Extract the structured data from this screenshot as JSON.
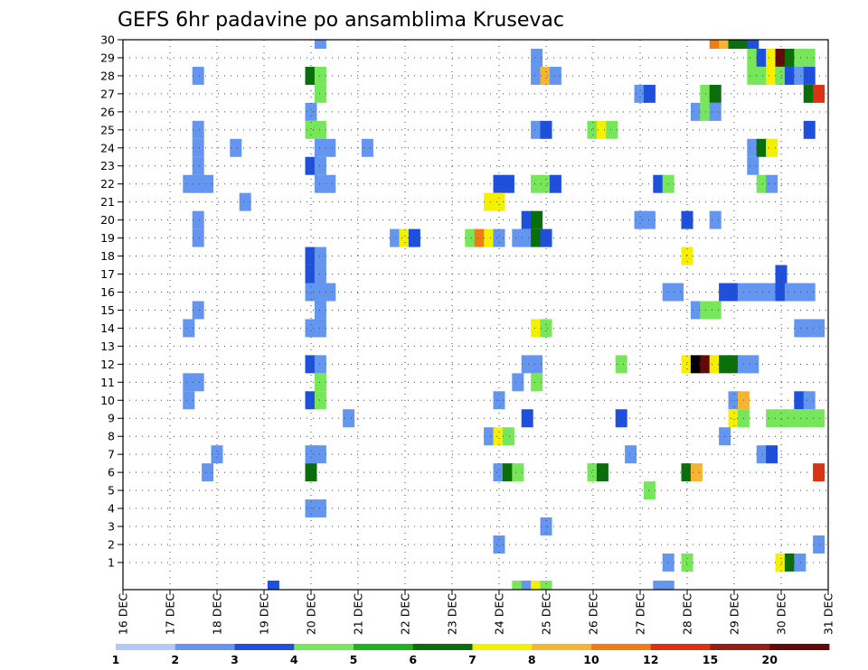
{
  "chart_data": {
    "type": "heatmap",
    "title": "GEFS 6hr padavine po ansamblima Krusevac",
    "xlabel": "",
    "ylabel": "",
    "x_tick_labels": [
      "16 DEC",
      "17 DEC",
      "18 DEC",
      "19 DEC",
      "20 DEC",
      "21 DEC",
      "22 DEC",
      "23 DEC",
      "24 DEC",
      "25 DEC",
      "26 DEC",
      "27 DEC",
      "28 DEC",
      "29 DEC",
      "30 DEC",
      "31 DEC"
    ],
    "y_tick_labels": [
      "1",
      "2",
      "3",
      "4",
      "5",
      "6",
      "7",
      "8",
      "9",
      "10",
      "11",
      "12",
      "13",
      "14",
      "15",
      "16",
      "17",
      "18",
      "19",
      "20",
      "21",
      "22",
      "23",
      "24",
      "25",
      "26",
      "27",
      "28",
      "29",
      "30"
    ],
    "xlim_days": [
      0,
      15
    ],
    "ylim_members": [
      0,
      30
    ],
    "time_step_hours": 6,
    "grid": true,
    "colorbar": {
      "position": "bottom",
      "labels": [
        "1",
        "2",
        "3",
        "4",
        "5",
        "6",
        "7",
        "8",
        "10",
        "12",
        "15",
        "20"
      ],
      "colors": [
        "#b4c8f5",
        "#6496f0",
        "#1e50dc",
        "#78e65a",
        "#1eb41e",
        "#0a6e0a",
        "#f5f000",
        "#f5b432",
        "#f07d14",
        "#dc3214",
        "#961e14",
        "#640a0a"
      ]
    },
    "cells": [
      [
        4.2,
        30,
        1
      ],
      [
        12.6,
        30,
        8
      ],
      [
        12.8,
        30,
        7
      ],
      [
        13.0,
        30,
        5
      ],
      [
        13.2,
        30,
        5
      ],
      [
        13.4,
        30,
        2
      ],
      [
        8.8,
        29,
        1
      ],
      [
        13.4,
        29,
        3
      ],
      [
        13.6,
        29,
        2
      ],
      [
        13.8,
        29,
        6
      ],
      [
        14.0,
        29,
        11
      ],
      [
        14.2,
        29,
        5
      ],
      [
        14.4,
        29,
        3
      ],
      [
        14.6,
        29,
        3
      ],
      [
        1.6,
        28,
        1
      ],
      [
        4.0,
        28,
        5
      ],
      [
        4.2,
        28,
        3
      ],
      [
        8.8,
        28,
        1
      ],
      [
        9.0,
        28,
        7
      ],
      [
        9.2,
        28,
        1
      ],
      [
        13.4,
        28,
        3
      ],
      [
        13.6,
        28,
        3
      ],
      [
        13.8,
        28,
        6
      ],
      [
        14.0,
        28,
        3
      ],
      [
        14.2,
        28,
        2
      ],
      [
        14.4,
        28,
        1
      ],
      [
        14.6,
        28,
        2
      ],
      [
        4.2,
        27,
        3
      ],
      [
        11.0,
        27,
        1
      ],
      [
        11.2,
        27,
        2
      ],
      [
        12.4,
        27,
        3
      ],
      [
        12.6,
        27,
        5
      ],
      [
        14.6,
        27,
        5
      ],
      [
        14.8,
        27,
        9
      ],
      [
        4.0,
        26,
        1
      ],
      [
        12.2,
        26,
        1
      ],
      [
        12.4,
        26,
        3
      ],
      [
        12.6,
        26,
        1
      ],
      [
        1.6,
        25,
        1
      ],
      [
        4.0,
        25,
        3
      ],
      [
        4.2,
        25,
        3
      ],
      [
        8.8,
        25,
        1
      ],
      [
        9.0,
        25,
        2
      ],
      [
        10.0,
        25,
        3
      ],
      [
        10.2,
        25,
        6
      ],
      [
        10.4,
        25,
        3
      ],
      [
        14.6,
        25,
        2
      ],
      [
        1.6,
        24,
        1
      ],
      [
        2.4,
        24,
        1
      ],
      [
        4.2,
        24,
        1
      ],
      [
        4.4,
        24,
        1
      ],
      [
        5.2,
        24,
        1
      ],
      [
        13.4,
        24,
        1
      ],
      [
        13.6,
        24,
        5
      ],
      [
        13.8,
        24,
        6
      ],
      [
        1.6,
        23,
        1
      ],
      [
        4.0,
        23,
        2
      ],
      [
        4.2,
        23,
        1
      ],
      [
        13.4,
        23,
        1
      ],
      [
        1.4,
        22,
        1
      ],
      [
        1.6,
        22,
        1
      ],
      [
        1.8,
        22,
        1
      ],
      [
        4.2,
        22,
        1
      ],
      [
        4.4,
        22,
        1
      ],
      [
        8.0,
        22,
        2
      ],
      [
        8.2,
        22,
        2
      ],
      [
        8.8,
        22,
        3
      ],
      [
        9.0,
        22,
        3
      ],
      [
        9.2,
        22,
        2
      ],
      [
        11.4,
        22,
        2
      ],
      [
        11.6,
        22,
        3
      ],
      [
        13.6,
        22,
        3
      ],
      [
        13.8,
        22,
        1
      ],
      [
        2.6,
        21,
        1
      ],
      [
        7.8,
        21,
        6
      ],
      [
        8.0,
        21,
        6
      ],
      [
        1.6,
        20,
        1
      ],
      [
        8.6,
        20,
        2
      ],
      [
        8.8,
        20,
        5
      ],
      [
        11.0,
        20,
        1
      ],
      [
        11.2,
        20,
        1
      ],
      [
        12.0,
        20,
        2
      ],
      [
        12.6,
        20,
        1
      ],
      [
        1.6,
        19,
        1
      ],
      [
        5.8,
        19,
        1
      ],
      [
        6.0,
        19,
        6
      ],
      [
        6.2,
        19,
        2
      ],
      [
        7.4,
        19,
        3
      ],
      [
        7.6,
        19,
        8
      ],
      [
        7.8,
        19,
        6
      ],
      [
        8.0,
        19,
        1
      ],
      [
        8.4,
        19,
        1
      ],
      [
        8.6,
        19,
        1
      ],
      [
        8.8,
        19,
        5
      ],
      [
        9.0,
        19,
        2
      ],
      [
        4.0,
        18,
        2
      ],
      [
        4.2,
        18,
        1
      ],
      [
        12.0,
        18,
        6
      ],
      [
        4.0,
        17,
        2
      ],
      [
        4.2,
        17,
        1
      ],
      [
        14.0,
        17,
        2
      ],
      [
        4.0,
        16,
        1
      ],
      [
        4.2,
        16,
        1
      ],
      [
        4.4,
        16,
        1
      ],
      [
        11.6,
        16,
        1
      ],
      [
        11.8,
        16,
        1
      ],
      [
        12.8,
        16,
        2
      ],
      [
        13.0,
        16,
        2
      ],
      [
        13.2,
        16,
        1
      ],
      [
        13.4,
        16,
        1
      ],
      [
        13.6,
        16,
        1
      ],
      [
        13.8,
        16,
        1
      ],
      [
        14.0,
        16,
        2
      ],
      [
        14.2,
        16,
        1
      ],
      [
        14.4,
        16,
        1
      ],
      [
        14.6,
        16,
        1
      ],
      [
        1.6,
        15,
        1
      ],
      [
        4.2,
        15,
        1
      ],
      [
        12.2,
        15,
        1
      ],
      [
        12.4,
        15,
        3
      ],
      [
        12.6,
        15,
        3
      ],
      [
        1.4,
        14,
        1
      ],
      [
        4.0,
        14,
        1
      ],
      [
        4.2,
        14,
        1
      ],
      [
        8.8,
        14,
        6
      ],
      [
        9.0,
        14,
        3
      ],
      [
        14.4,
        14,
        1
      ],
      [
        14.6,
        14,
        1
      ],
      [
        14.8,
        14,
        1
      ],
      [
        4.0,
        12,
        2
      ],
      [
        4.2,
        12,
        1
      ],
      [
        8.6,
        12,
        1
      ],
      [
        8.8,
        12,
        1
      ],
      [
        10.6,
        12,
        3
      ],
      [
        12.0,
        12,
        6
      ],
      [
        12.2,
        12,
        12
      ],
      [
        12.4,
        12,
        11
      ],
      [
        12.6,
        12,
        6
      ],
      [
        12.8,
        12,
        5
      ],
      [
        13.0,
        12,
        5
      ],
      [
        13.2,
        12,
        1
      ],
      [
        13.4,
        12,
        1
      ],
      [
        1.4,
        11,
        1
      ],
      [
        1.6,
        11,
        1
      ],
      [
        4.2,
        11,
        3
      ],
      [
        8.4,
        11,
        1
      ],
      [
        8.8,
        11,
        3
      ],
      [
        1.4,
        10,
        1
      ],
      [
        4.0,
        10,
        2
      ],
      [
        4.2,
        10,
        3
      ],
      [
        8.0,
        10,
        1
      ],
      [
        13.0,
        10,
        1
      ],
      [
        13.2,
        10,
        7
      ],
      [
        14.4,
        10,
        2
      ],
      [
        14.6,
        10,
        1
      ],
      [
        4.8,
        9,
        1
      ],
      [
        8.6,
        9,
        2
      ],
      [
        10.6,
        9,
        2
      ],
      [
        13.0,
        9,
        6
      ],
      [
        13.2,
        9,
        3
      ],
      [
        13.8,
        9,
        3
      ],
      [
        14.0,
        9,
        3
      ],
      [
        14.2,
        9,
        3
      ],
      [
        14.4,
        9,
        3
      ],
      [
        14.6,
        9,
        3
      ],
      [
        14.8,
        9,
        3
      ],
      [
        7.8,
        8,
        1
      ],
      [
        8.0,
        8,
        6
      ],
      [
        8.2,
        8,
        3
      ],
      [
        12.8,
        8,
        1
      ],
      [
        2.0,
        7,
        1
      ],
      [
        4.0,
        7,
        1
      ],
      [
        4.2,
        7,
        1
      ],
      [
        10.8,
        7,
        1
      ],
      [
        13.6,
        7,
        1
      ],
      [
        13.8,
        7,
        2
      ],
      [
        1.8,
        6,
        1
      ],
      [
        4.0,
        6,
        5
      ],
      [
        8.0,
        6,
        1
      ],
      [
        8.2,
        6,
        5
      ],
      [
        8.4,
        6,
        3
      ],
      [
        10.0,
        6,
        3
      ],
      [
        10.2,
        6,
        5
      ],
      [
        12.0,
        6,
        5
      ],
      [
        12.2,
        6,
        7
      ],
      [
        14.8,
        6,
        9
      ],
      [
        11.2,
        5,
        3
      ],
      [
        4.0,
        4,
        1
      ],
      [
        4.2,
        4,
        1
      ],
      [
        9.0,
        3,
        1
      ],
      [
        8.0,
        2,
        1
      ],
      [
        14.8,
        2,
        1
      ],
      [
        11.6,
        1,
        1
      ],
      [
        12.0,
        1,
        3
      ],
      [
        14.0,
        1,
        6
      ],
      [
        14.2,
        1,
        5
      ],
      [
        14.4,
        1,
        1
      ],
      [
        3.2,
        0,
        2
      ],
      [
        8.4,
        0,
        3
      ],
      [
        8.6,
        0,
        1
      ],
      [
        8.8,
        0,
        6
      ],
      [
        9.0,
        0,
        3
      ],
      [
        11.4,
        0,
        1
      ],
      [
        11.6,
        0,
        1
      ]
    ]
  }
}
